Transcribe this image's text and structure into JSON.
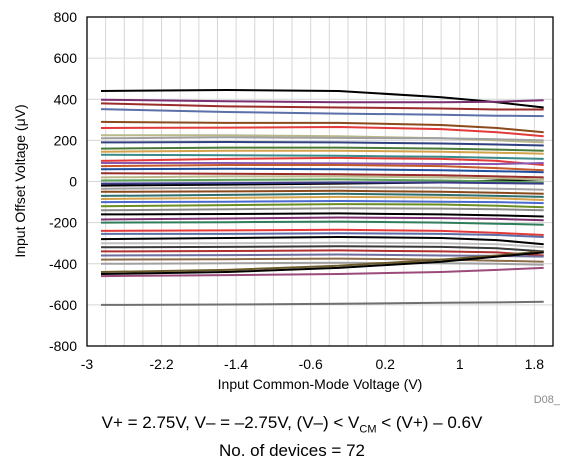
{
  "chart_data": {
    "type": "line",
    "title": "",
    "xlabel": "Input Common-Mode Voltage (V)",
    "ylabel": "Input Offset Voltage (μV)",
    "xlim": [
      -3,
      2
    ],
    "ylim": [
      -800,
      800
    ],
    "xticks": [
      -3,
      -2.2,
      -1.4,
      -0.6,
      0.2,
      1,
      1.8
    ],
    "xtick_labels": [
      "-3",
      "-2.2",
      "-1.4",
      "-0.6",
      "0.2",
      "1",
      "1.8"
    ],
    "yticks": [
      800,
      600,
      400,
      200,
      0,
      -200,
      -400,
      -600,
      -800
    ],
    "ytick_labels": [
      "800",
      "600",
      "400",
      "200",
      "0",
      "-200",
      "-400",
      "-600",
      "-800"
    ],
    "grid": true,
    "legend": "none",
    "figure_code": "D08_",
    "x": [
      -2.85,
      -1.5,
      -0.3,
      0.8,
      1.4,
      1.9
    ],
    "series": [
      {
        "color": "#000000",
        "values": [
          440,
          445,
          440,
          410,
          385,
          360
        ]
      },
      {
        "color": "#7b2f6e",
        "values": [
          398,
          390,
          385,
          385,
          388,
          395
        ]
      },
      {
        "color": "#9b2c2c",
        "values": [
          380,
          365,
          360,
          355,
          350,
          350
        ]
      },
      {
        "color": "#5b6fa8",
        "values": [
          352,
          338,
          330,
          325,
          320,
          318
        ]
      },
      {
        "color": "#8b4a1c",
        "values": [
          290,
          285,
          285,
          275,
          260,
          240
        ]
      },
      {
        "color": "#e23a3a",
        "values": [
          260,
          262,
          265,
          255,
          240,
          220
        ]
      },
      {
        "color": "#b8b88a",
        "values": [
          225,
          225,
          220,
          210,
          200,
          190
        ]
      },
      {
        "color": "#a0a0a0",
        "values": [
          210,
          215,
          212,
          210,
          205,
          200
        ]
      },
      {
        "color": "#2f3f7f",
        "values": [
          190,
          192,
          190,
          185,
          180,
          175
        ]
      },
      {
        "color": "#4a7a3a",
        "values": [
          160,
          165,
          165,
          160,
          155,
          150
        ]
      },
      {
        "color": "#d4a24a",
        "values": [
          145,
          150,
          150,
          145,
          140,
          135
        ]
      },
      {
        "color": "#3a8a8a",
        "values": [
          130,
          128,
          125,
          120,
          115,
          110
        ]
      },
      {
        "color": "#e23a3a",
        "values": [
          100,
          110,
          115,
          110,
          100,
          80
        ]
      },
      {
        "color": "#8a5ab0",
        "values": [
          90,
          90,
          88,
          85,
          85,
          90
        ]
      },
      {
        "color": "#c65a2a",
        "values": [
          75,
          80,
          80,
          75,
          65,
          55
        ]
      },
      {
        "color": "#1f4e9f",
        "values": [
          60,
          62,
          60,
          55,
          50,
          45
        ]
      },
      {
        "color": "#000000",
        "values": [
          -20,
          -15,
          -10,
          -5,
          5,
          10
        ]
      },
      {
        "color": "#9b2c2c",
        "values": [
          40,
          38,
          35,
          30,
          25,
          20
        ]
      },
      {
        "color": "#b8b88a",
        "values": [
          20,
          25,
          25,
          20,
          15,
          10
        ]
      },
      {
        "color": "#5aa05a",
        "values": [
          5,
          8,
          10,
          5,
          0,
          -5
        ]
      },
      {
        "color": "#3a3a8a",
        "values": [
          -10,
          -8,
          -5,
          -5,
          -8,
          -10
        ]
      },
      {
        "color": "#a0a0a0",
        "values": [
          -35,
          -30,
          -28,
          -30,
          -35,
          -40
        ]
      },
      {
        "color": "#8b4a1c",
        "values": [
          -50,
          -48,
          -45,
          -50,
          -55,
          -60
        ]
      },
      {
        "color": "#2f6f6f",
        "values": [
          -70,
          -65,
          -60,
          -65,
          -70,
          -75
        ]
      },
      {
        "color": "#d4a24a",
        "values": [
          -85,
          -80,
          -75,
          -78,
          -82,
          -90
        ]
      },
      {
        "color": "#4a6ad0",
        "values": [
          -100,
          -98,
          -95,
          -98,
          -100,
          -105
        ]
      },
      {
        "color": "#6b8e23",
        "values": [
          -120,
          -115,
          -110,
          -112,
          -118,
          -125
        ]
      },
      {
        "color": "#8a8a8a",
        "values": [
          -140,
          -135,
          -130,
          -132,
          -135,
          -140
        ]
      },
      {
        "color": "#000000",
        "values": [
          -160,
          -158,
          -155,
          -160,
          -165,
          -170
        ]
      },
      {
        "color": "#7b2f6e",
        "values": [
          -185,
          -180,
          -175,
          -178,
          -182,
          -188
        ]
      },
      {
        "color": "#2e7d5b",
        "values": [
          -200,
          -198,
          -195,
          -200,
          -205,
          -210
        ]
      },
      {
        "color": "#e23a3a",
        "values": [
          -240,
          -238,
          -235,
          -240,
          -250,
          -260
        ]
      },
      {
        "color": "#5b6fa8",
        "values": [
          -255,
          -255,
          -252,
          -255,
          -260,
          -270
        ]
      },
      {
        "color": "#000000",
        "values": [
          -280,
          -275,
          -270,
          -275,
          -285,
          -305
        ]
      },
      {
        "color": "#c0c0c0",
        "values": [
          -300,
          -300,
          -298,
          -300,
          -305,
          -320
        ]
      },
      {
        "color": "#3a3a3a",
        "values": [
          -320,
          -318,
          -315,
          -318,
          -325,
          -340
        ]
      },
      {
        "color": "#b03030",
        "values": [
          -340,
          -338,
          -335,
          -340,
          -345,
          -360
        ]
      },
      {
        "color": "#6f6f9f",
        "values": [
          -360,
          -358,
          -355,
          -360,
          -362,
          -365
        ]
      },
      {
        "color": "#8b6b4a",
        "values": [
          -380,
          -378,
          -375,
          -380,
          -385,
          -390
        ]
      },
      {
        "color": "#a0a0a0",
        "values": [
          -400,
          -398,
          -395,
          -398,
          -400,
          -405
        ]
      },
      {
        "color": "#6b5a2a",
        "values": [
          -440,
          -430,
          -410,
          -380,
          -360,
          -340
        ]
      },
      {
        "color": "#000000",
        "values": [
          -450,
          -440,
          -420,
          -390,
          -365,
          -345
        ]
      },
      {
        "color": "#9b4a7a",
        "values": [
          -460,
          -455,
          -450,
          -440,
          -430,
          -420
        ]
      },
      {
        "color": "#707070",
        "values": [
          -600,
          -598,
          -595,
          -590,
          -588,
          -585
        ]
      }
    ]
  },
  "caption": {
    "line1_before_sub": "V+ = 2.75V, V– = –2.75V, (V–) < V",
    "line1_sub": "CM",
    "line1_after_sub": " < (V+) – 0.6V",
    "line2": "No. of devices = 72"
  }
}
